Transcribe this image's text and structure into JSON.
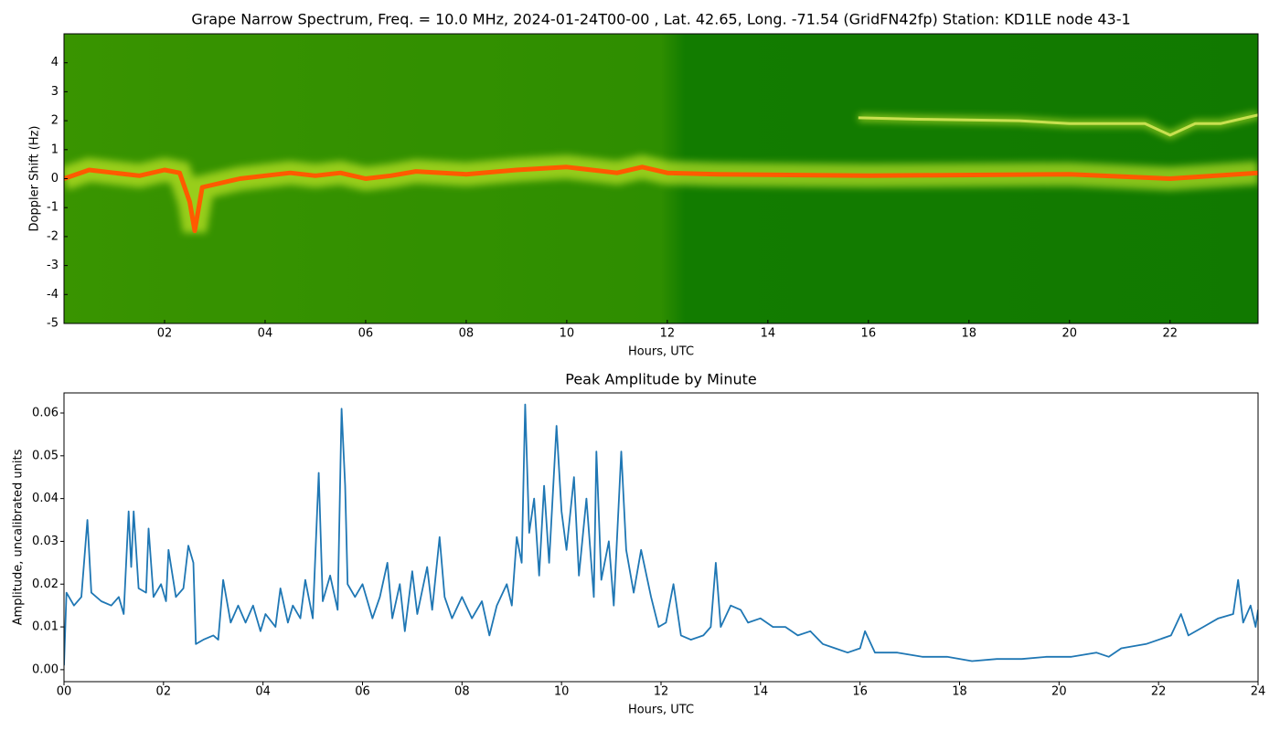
{
  "chart_data": [
    {
      "type": "spectrogram",
      "title": "Grape Narrow Spectrum, Freq. = 10.0 MHz, 2024-01-24T00-00 , Lat.  42.65, Long. -71.54 (GridFN42fp) Station: KD1LE node 43-1",
      "xlabel": "Hours, UTC",
      "ylabel": "Doppler Shift (Hz)",
      "xlim": [
        0,
        23.75
      ],
      "ylim": [
        -5,
        5
      ],
      "xticks": [
        {
          "value": 2,
          "label": "02"
        },
        {
          "value": 4,
          "label": "04"
        },
        {
          "value": 6,
          "label": "06"
        },
        {
          "value": 8,
          "label": "08"
        },
        {
          "value": 10,
          "label": "10"
        },
        {
          "value": 12,
          "label": "12"
        },
        {
          "value": 14,
          "label": "14"
        },
        {
          "value": 16,
          "label": "16"
        },
        {
          "value": 18,
          "label": "18"
        },
        {
          "value": 20,
          "label": "20"
        },
        {
          "value": 22,
          "label": "22"
        }
      ],
      "yticks": [
        -5,
        -4,
        -3,
        -2,
        -1,
        0,
        1,
        2,
        3,
        4
      ],
      "background_color": "#1a8200",
      "series": [
        {
          "color": "#ff5a00",
          "x": [
            0,
            0.5,
            1,
            1.5,
            2,
            2.3,
            2.5,
            2.6,
            2.75,
            3.5,
            4,
            4.5,
            5,
            5.5,
            6,
            6.5,
            7,
            8,
            9,
            10,
            11,
            11.5,
            12,
            13,
            16,
            20,
            22,
            23.75
          ],
          "values": [
            0,
            0.3,
            0.2,
            0.1,
            0.3,
            0.2,
            -0.8,
            -1.8,
            -0.3,
            0,
            0.1,
            0.2,
            0.1,
            0.2,
            0,
            0.1,
            0.25,
            0.15,
            0.3,
            0.4,
            0.2,
            0.4,
            0.2,
            0.15,
            0.1,
            0.15,
            0,
            0.2
          ]
        },
        {
          "color": "#c8e050",
          "x": [
            15.8,
            17,
            19,
            20,
            21.5,
            22,
            22.5,
            23,
            23.75
          ],
          "values": [
            2.1,
            2.05,
            2,
            1.9,
            1.9,
            1.5,
            1.9,
            1.9,
            2.2
          ]
        }
      ]
    },
    {
      "type": "line",
      "title": "Peak Amplitude by Minute",
      "xlabel": "Hours, UTC",
      "ylabel": "Amplitude, uncalibrated units",
      "xlim": [
        0,
        24
      ],
      "ylim": [
        -0.0028,
        0.0647
      ],
      "xticks": [
        {
          "value": 0,
          "label": "00"
        },
        {
          "value": 2,
          "label": "02"
        },
        {
          "value": 4,
          "label": "04"
        },
        {
          "value": 6,
          "label": "06"
        },
        {
          "value": 8,
          "label": "08"
        },
        {
          "value": 10,
          "label": "10"
        },
        {
          "value": 12,
          "label": "12"
        },
        {
          "value": 14,
          "label": "14"
        },
        {
          "value": 16,
          "label": "16"
        },
        {
          "value": 18,
          "label": "18"
        },
        {
          "value": 20,
          "label": "20"
        },
        {
          "value": 22,
          "label": "22"
        },
        {
          "value": 24,
          "label": "24"
        }
      ],
      "yticks": [
        {
          "value": 0,
          "label": "0.00"
        },
        0.01,
        0.02,
        0.03,
        0.04,
        0.05,
        0.06
      ],
      "color": "#1f77b4",
      "x": [
        0,
        0.05,
        0.2,
        0.35,
        0.47,
        0.55,
        0.75,
        0.95,
        1.1,
        1.2,
        1.3,
        1.35,
        1.4,
        1.5,
        1.65,
        1.7,
        1.8,
        1.95,
        2.05,
        2.1,
        2.25,
        2.4,
        2.5,
        2.6,
        2.65,
        2.8,
        3.0,
        3.1,
        3.2,
        3.35,
        3.5,
        3.65,
        3.8,
        3.95,
        4.05,
        4.25,
        4.35,
        4.5,
        4.6,
        4.75,
        4.85,
        5.0,
        5.12,
        5.2,
        5.35,
        5.5,
        5.58,
        5.65,
        5.7,
        5.85,
        6.0,
        6.2,
        6.35,
        6.5,
        6.6,
        6.75,
        6.85,
        7.0,
        7.1,
        7.3,
        7.4,
        7.55,
        7.65,
        7.8,
        8.0,
        8.2,
        8.4,
        8.55,
        8.7,
        8.9,
        9.0,
        9.1,
        9.2,
        9.27,
        9.35,
        9.45,
        9.55,
        9.65,
        9.75,
        9.9,
        10.0,
        10.1,
        10.25,
        10.35,
        10.5,
        10.65,
        10.7,
        10.8,
        10.95,
        11.05,
        11.2,
        11.3,
        11.45,
        11.6,
        11.8,
        11.95,
        12.1,
        12.25,
        12.4,
        12.6,
        12.85,
        13.0,
        13.1,
        13.2,
        13.4,
        13.6,
        13.75,
        14.0,
        14.25,
        14.5,
        14.75,
        15.0,
        15.25,
        15.5,
        15.75,
        16.0,
        16.1,
        16.3,
        16.75,
        17.25,
        17.75,
        18.25,
        18.75,
        19.25,
        19.75,
        20.25,
        20.75,
        21.0,
        21.25,
        21.75,
        22.25,
        22.45,
        22.6,
        22.9,
        23.2,
        23.5,
        23.6,
        23.7,
        23.85,
        23.95,
        24.0
      ],
      "values": [
        0.001,
        0.018,
        0.015,
        0.017,
        0.035,
        0.018,
        0.016,
        0.015,
        0.017,
        0.013,
        0.037,
        0.024,
        0.037,
        0.019,
        0.018,
        0.033,
        0.017,
        0.02,
        0.016,
        0.028,
        0.017,
        0.019,
        0.029,
        0.025,
        0.006,
        0.007,
        0.008,
        0.007,
        0.021,
        0.011,
        0.015,
        0.011,
        0.015,
        0.009,
        0.013,
        0.01,
        0.019,
        0.011,
        0.015,
        0.012,
        0.021,
        0.012,
        0.046,
        0.016,
        0.022,
        0.014,
        0.061,
        0.043,
        0.02,
        0.017,
        0.02,
        0.012,
        0.017,
        0.025,
        0.012,
        0.02,
        0.009,
        0.023,
        0.013,
        0.024,
        0.014,
        0.031,
        0.017,
        0.012,
        0.017,
        0.012,
        0.016,
        0.008,
        0.015,
        0.02,
        0.015,
        0.031,
        0.025,
        0.062,
        0.032,
        0.04,
        0.022,
        0.043,
        0.025,
        0.057,
        0.037,
        0.028,
        0.045,
        0.022,
        0.04,
        0.017,
        0.051,
        0.021,
        0.03,
        0.015,
        0.051,
        0.028,
        0.018,
        0.028,
        0.017,
        0.01,
        0.011,
        0.02,
        0.008,
        0.007,
        0.008,
        0.01,
        0.025,
        0.01,
        0.015,
        0.014,
        0.011,
        0.012,
        0.01,
        0.01,
        0.008,
        0.009,
        0.006,
        0.005,
        0.004,
        0.005,
        0.009,
        0.004,
        0.004,
        0.003,
        0.003,
        0.002,
        0.0025,
        0.0025,
        0.003,
        0.003,
        0.004,
        0.003,
        0.005,
        0.006,
        0.008,
        0.013,
        0.008,
        0.01,
        0.012,
        0.013,
        0.021,
        0.011,
        0.015,
        0.01,
        0.014
      ]
    }
  ]
}
